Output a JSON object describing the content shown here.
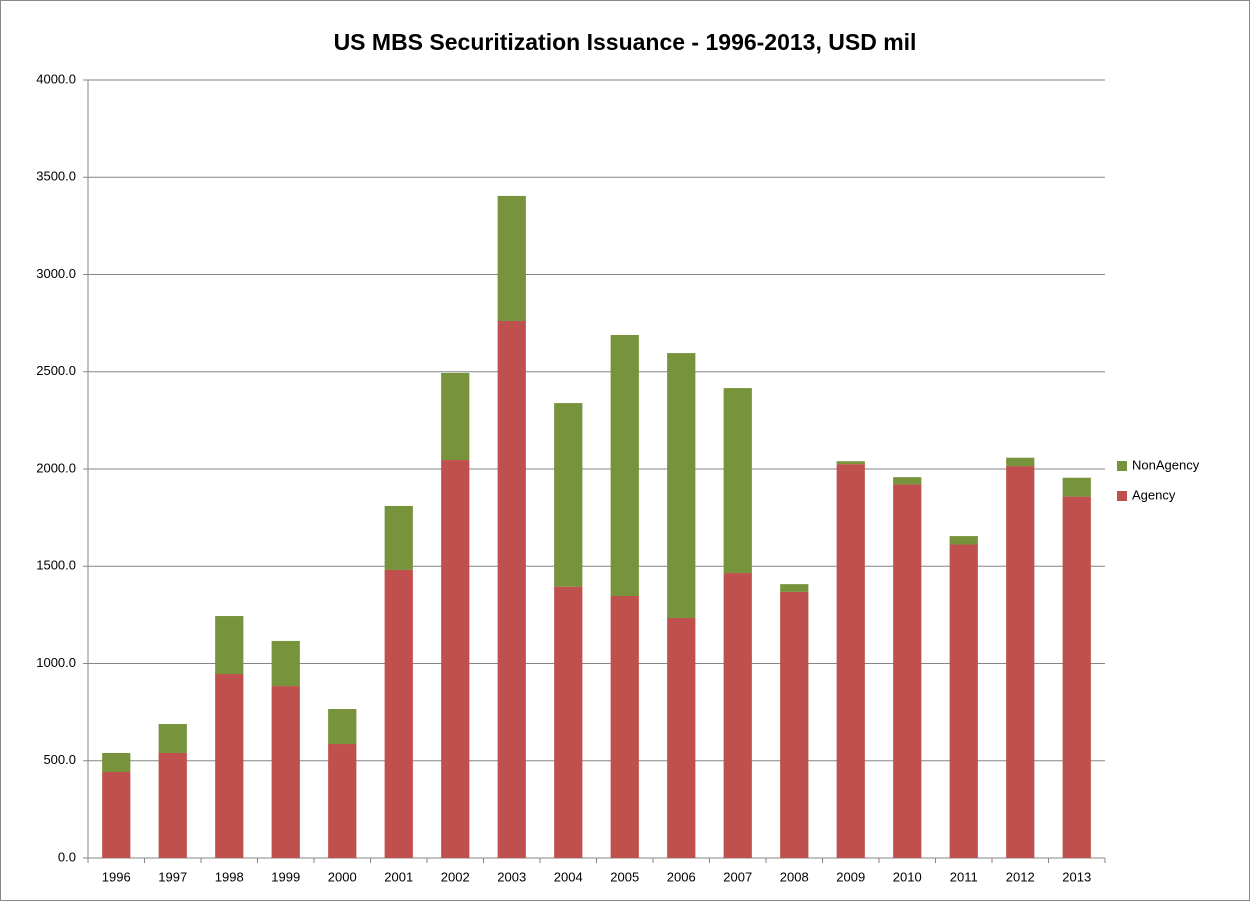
{
  "chart_data": {
    "type": "stacked_bar",
    "title": "US MBS Securitization Issuance - 1996-2013, USD mil",
    "categories": [
      "1996",
      "1997",
      "1998",
      "1999",
      "2000",
      "2001",
      "2002",
      "2003",
      "2004",
      "2005",
      "2006",
      "2007",
      "2008",
      "2009",
      "2010",
      "2011",
      "2012",
      "2013"
    ],
    "series": [
      {
        "name": "Agency",
        "color": "#c0504d",
        "values": [
          442,
          540,
          946,
          884,
          586,
          1481,
          2046,
          2761,
          1395,
          1347,
          1234,
          1465,
          1368,
          2025,
          1920,
          1612,
          2015,
          1858
        ]
      },
      {
        "name": "NonAgency",
        "color": "#77933c",
        "values": [
          98,
          149,
          298,
          232,
          180,
          329,
          448,
          643,
          944,
          1342,
          1362,
          951,
          40,
          15,
          38,
          43,
          43,
          97
        ]
      }
    ],
    "ylim": [
      0,
      4000
    ],
    "yticks": [
      {
        "value": 0,
        "label": "0.0"
      },
      {
        "value": 500,
        "label": "500.0"
      },
      {
        "value": 1000,
        "label": "1000.0"
      },
      {
        "value": 1500,
        "label": "1500.0"
      },
      {
        "value": 2000,
        "label": "2000.0"
      },
      {
        "value": 2500,
        "label": "2500.0"
      },
      {
        "value": 3000,
        "label": "3000.0"
      },
      {
        "value": 3500,
        "label": "3500.0"
      },
      {
        "value": 4000,
        "label": "4000.0"
      }
    ],
    "grid": true,
    "legend": "right"
  }
}
